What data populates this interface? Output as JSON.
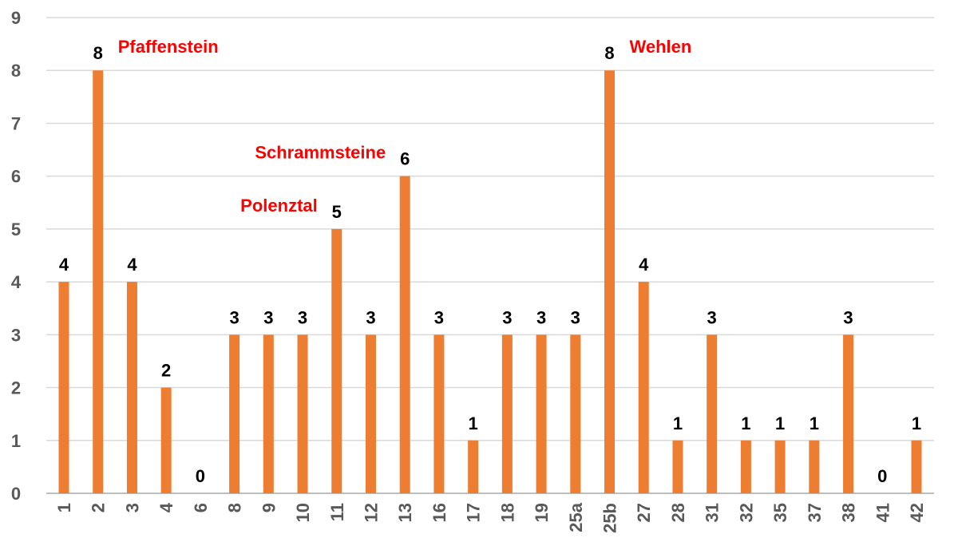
{
  "chart_data": {
    "type": "bar",
    "title": "",
    "xlabel": "",
    "ylabel": "",
    "ylim": [
      0,
      9
    ],
    "yticks": [
      0,
      1,
      2,
      3,
      4,
      5,
      6,
      7,
      8,
      9
    ],
    "grid": true,
    "legend": "none",
    "bar_color": "#ED7D31",
    "annotation_color": "#FF0000",
    "categories": [
      "1",
      "2",
      "3",
      "4",
      "6",
      "8",
      "9",
      "10",
      "11",
      "12",
      "13",
      "16",
      "17",
      "18",
      "19",
      "25a",
      "25b",
      "27",
      "28",
      "31",
      "32",
      "35",
      "37",
      "38",
      "41",
      "42"
    ],
    "values": [
      4,
      8,
      4,
      2,
      0,
      3,
      3,
      3,
      5,
      3,
      6,
      3,
      1,
      3,
      3,
      3,
      8,
      4,
      1,
      3,
      1,
      1,
      1,
      3,
      0,
      1
    ],
    "annotations": [
      {
        "text": "Pfaffenstein",
        "category": "2",
        "side": "right"
      },
      {
        "text": "Schrammsteine",
        "category": "13",
        "side": "left"
      },
      {
        "text": "Polenztal",
        "category": "11",
        "side": "left"
      },
      {
        "text": "Wehlen",
        "category": "25b",
        "side": "right"
      }
    ]
  }
}
